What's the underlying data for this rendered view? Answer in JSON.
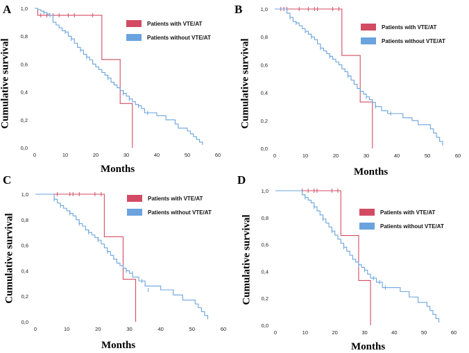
{
  "chart_data": [
    {
      "panel": "A",
      "type": "line",
      "subtype": "kaplan-meier step",
      "xlabel": "Months",
      "ylabel": "Cumulative survival",
      "xticks": [
        "0",
        "10",
        "20",
        "30",
        "40",
        "50",
        "60"
      ],
      "yticks": [
        "0,0",
        "0,2",
        "0,4",
        "0,6",
        "0,8",
        "1,0"
      ],
      "xlim": [
        0,
        60
      ],
      "ylim": [
        0,
        1
      ],
      "legend": [
        "Patients with VTE/AT",
        "Patients without VTE/AT"
      ],
      "series": [
        {
          "name": "Patients with VTE/AT",
          "color": "#d24b62",
          "x": [
            0,
            1,
            22,
            28,
            32
          ],
          "y": [
            1.0,
            0.95,
            0.633,
            0.317,
            0.0
          ],
          "censored": [
            [
              2,
              0.95
            ],
            [
              4,
              0.95
            ],
            [
              6,
              0.95
            ],
            [
              8,
              0.95
            ],
            [
              11,
              0.95
            ],
            [
              13,
              0.95
            ],
            [
              19,
              0.95
            ]
          ]
        },
        {
          "name": "Patients without VTE/AT",
          "color": "#6aa3dd",
          "x": [
            0,
            1,
            2,
            3,
            4,
            5,
            6,
            7,
            8,
            9,
            10,
            11,
            12,
            13,
            14,
            15,
            16,
            17,
            18,
            19,
            20,
            21,
            22,
            23,
            24,
            25,
            26,
            27,
            28,
            29,
            30,
            31,
            32,
            33,
            34,
            35,
            36,
            40,
            43,
            46,
            47,
            50,
            51,
            52,
            53,
            54,
            55
          ],
          "y": [
            1.0,
            0.99,
            0.98,
            0.97,
            0.96,
            0.95,
            0.9,
            0.88,
            0.86,
            0.84,
            0.83,
            0.8,
            0.78,
            0.75,
            0.72,
            0.7,
            0.67,
            0.65,
            0.63,
            0.6,
            0.58,
            0.56,
            0.54,
            0.52,
            0.5,
            0.47,
            0.45,
            0.43,
            0.41,
            0.39,
            0.37,
            0.35,
            0.33,
            0.31,
            0.3,
            0.28,
            0.25,
            0.23,
            0.2,
            0.17,
            0.14,
            0.12,
            0.1,
            0.08,
            0.06,
            0.04,
            0.02
          ],
          "censored": [
            [
              3,
              0.97
            ],
            [
              5,
              0.95
            ],
            [
              10,
              0.83
            ],
            [
              12,
              0.78
            ],
            [
              15,
              0.7
            ],
            [
              17,
              0.65
            ],
            [
              24,
              0.5
            ],
            [
              29,
              0.39
            ],
            [
              31,
              0.35
            ],
            [
              34,
              0.3
            ],
            [
              37,
              0.25
            ]
          ]
        }
      ]
    },
    {
      "panel": "B",
      "type": "line",
      "subtype": "kaplan-meier step",
      "xlabel": "Months",
      "ylabel": "Cumulative survival",
      "xticks": [
        "0",
        "10",
        "20",
        "30",
        "40",
        "50",
        "60"
      ],
      "yticks": [
        "0,0",
        "0,2",
        "0,4",
        "0,6",
        "0,8",
        "1,0"
      ],
      "xlim": [
        0,
        60
      ],
      "ylim": [
        0,
        1
      ],
      "legend": [
        "Patients with VTE/AT",
        "Patients without VTE/AT"
      ],
      "series": [
        {
          "name": "Patients with VTE/AT",
          "color": "#d24b62",
          "x": [
            0,
            22,
            28,
            32
          ],
          "y": [
            1.0,
            0.667,
            0.333,
            0.0
          ],
          "censored": [
            [
              2,
              1.0
            ],
            [
              3,
              1.0
            ],
            [
              4,
              1.0
            ],
            [
              8,
              1.0
            ],
            [
              11,
              1.0
            ],
            [
              13,
              1.0
            ],
            [
              14,
              1.0
            ],
            [
              19,
              1.0
            ],
            [
              21,
              1.0
            ]
          ]
        },
        {
          "name": "Patients without VTE/AT",
          "color": "#6aa3dd",
          "x": [
            0,
            4,
            5,
            6,
            7,
            8,
            9,
            10,
            11,
            12,
            13,
            14,
            15,
            16,
            17,
            18,
            19,
            20,
            21,
            22,
            23,
            24,
            25,
            26,
            27,
            28,
            29,
            30,
            31,
            32,
            33,
            35,
            37,
            42,
            45,
            47,
            51,
            52,
            53,
            54,
            55
          ],
          "y": [
            1.0,
            0.97,
            0.94,
            0.91,
            0.9,
            0.88,
            0.86,
            0.84,
            0.82,
            0.8,
            0.78,
            0.75,
            0.72,
            0.7,
            0.68,
            0.66,
            0.64,
            0.62,
            0.6,
            0.57,
            0.55,
            0.52,
            0.49,
            0.46,
            0.43,
            0.41,
            0.39,
            0.37,
            0.35,
            0.33,
            0.3,
            0.27,
            0.25,
            0.22,
            0.2,
            0.17,
            0.14,
            0.11,
            0.08,
            0.05,
            0.02
          ],
          "censored": [
            [
              5,
              0.94
            ],
            [
              7,
              0.9
            ],
            [
              10,
              0.84
            ],
            [
              12,
              0.8
            ],
            [
              15,
              0.72
            ],
            [
              18,
              0.66
            ],
            [
              24,
              0.52
            ],
            [
              30,
              0.37
            ],
            [
              33,
              0.3
            ],
            [
              38,
              0.25
            ]
          ]
        }
      ]
    },
    {
      "panel": "C",
      "type": "line",
      "subtype": "kaplan-meier step",
      "xlabel": "Months",
      "ylabel": "Cumulative survival",
      "xticks": [
        "0",
        "10",
        "20",
        "30",
        "40",
        "50",
        "60"
      ],
      "yticks": [
        "0,0",
        "0,2",
        "0,4",
        "0,6",
        "0,8",
        "1,0"
      ],
      "xlim": [
        0,
        60
      ],
      "ylim": [
        0,
        1
      ],
      "legend": [
        "Patients with VTE/AT",
        "Patients without VTE/AT"
      ],
      "series": [
        {
          "name": "Patients with VTE/AT",
          "color": "#d24b62",
          "x": [
            0,
            22,
            28,
            32
          ],
          "y": [
            1.0,
            0.667,
            0.333,
            0.0
          ],
          "censored": [
            [
              7,
              1.0
            ],
            [
              11,
              1.0
            ],
            [
              12,
              1.0
            ],
            [
              14,
              1.0
            ],
            [
              19,
              1.0
            ],
            [
              21,
              1.0
            ]
          ]
        },
        {
          "name": "Patients without VTE/AT",
          "color": "#6aa3dd",
          "x": [
            0,
            6,
            7,
            8,
            9,
            10,
            11,
            12,
            13,
            14,
            15,
            16,
            17,
            18,
            19,
            20,
            21,
            22,
            23,
            24,
            25,
            26,
            27,
            28,
            29,
            30,
            31,
            33,
            35,
            40,
            44,
            47,
            51,
            52,
            53,
            54,
            55
          ],
          "y": [
            1.0,
            0.96,
            0.93,
            0.91,
            0.89,
            0.87,
            0.85,
            0.83,
            0.8,
            0.77,
            0.75,
            0.72,
            0.7,
            0.68,
            0.66,
            0.64,
            0.61,
            0.58,
            0.55,
            0.52,
            0.49,
            0.46,
            0.44,
            0.42,
            0.4,
            0.38,
            0.35,
            0.32,
            0.28,
            0.25,
            0.21,
            0.17,
            0.14,
            0.11,
            0.08,
            0.05,
            0.02
          ],
          "censored": [
            [
              6,
              0.96
            ],
            [
              8,
              0.91
            ],
            [
              11,
              0.85
            ],
            [
              14,
              0.77
            ],
            [
              17,
              0.7
            ],
            [
              20,
              0.64
            ],
            [
              23,
              0.55
            ],
            [
              29,
              0.4
            ],
            [
              31,
              0.38
            ],
            [
              34,
              0.32
            ],
            [
              36,
              0.25
            ]
          ]
        }
      ]
    },
    {
      "panel": "D",
      "type": "line",
      "subtype": "kaplan-meier step",
      "xlabel": "Months",
      "ylabel": "Cumulative survival",
      "xticks": [
        "0",
        "10",
        "20",
        "30",
        "40",
        "50",
        "60"
      ],
      "yticks": [
        "0,0",
        "0,2",
        "0,4",
        "0,6",
        "0,8",
        "1,0"
      ],
      "xlim": [
        0,
        60
      ],
      "ylim": [
        0,
        1
      ],
      "legend": [
        "Patients with VTE/AT",
        "Patients without VTE/AT"
      ],
      "series": [
        {
          "name": "Patients with VTE/AT",
          "color": "#d24b62",
          "x": [
            0,
            22,
            28,
            32
          ],
          "y": [
            1.0,
            0.667,
            0.333,
            0.0
          ],
          "censored": [
            [
              9,
              1.0
            ],
            [
              11,
              1.0
            ],
            [
              13,
              1.0
            ],
            [
              14,
              1.0
            ],
            [
              19,
              1.0
            ],
            [
              21,
              1.0
            ]
          ]
        },
        {
          "name": "Patients without VTE/AT",
          "color": "#6aa3dd",
          "x": [
            0,
            9,
            10,
            11,
            12,
            13,
            14,
            15,
            16,
            17,
            18,
            19,
            20,
            21,
            22,
            23,
            24,
            25,
            26,
            27,
            28,
            29,
            30,
            31,
            32,
            34,
            36,
            42,
            45,
            48,
            51,
            52,
            53,
            54,
            55
          ],
          "y": [
            1.0,
            0.97,
            0.95,
            0.93,
            0.91,
            0.88,
            0.85,
            0.82,
            0.79,
            0.76,
            0.73,
            0.7,
            0.67,
            0.64,
            0.61,
            0.58,
            0.55,
            0.52,
            0.49,
            0.47,
            0.45,
            0.43,
            0.41,
            0.38,
            0.35,
            0.32,
            0.28,
            0.25,
            0.21,
            0.17,
            0.14,
            0.11,
            0.08,
            0.05,
            0.02
          ],
          "censored": [
            [
              10,
              0.95
            ],
            [
              13,
              0.88
            ],
            [
              16,
              0.79
            ],
            [
              19,
              0.7
            ],
            [
              23,
              0.58
            ],
            [
              28,
              0.45
            ],
            [
              30,
              0.41
            ],
            [
              33,
              0.35
            ],
            [
              35,
              0.32
            ],
            [
              37,
              0.28
            ]
          ]
        }
      ]
    }
  ]
}
